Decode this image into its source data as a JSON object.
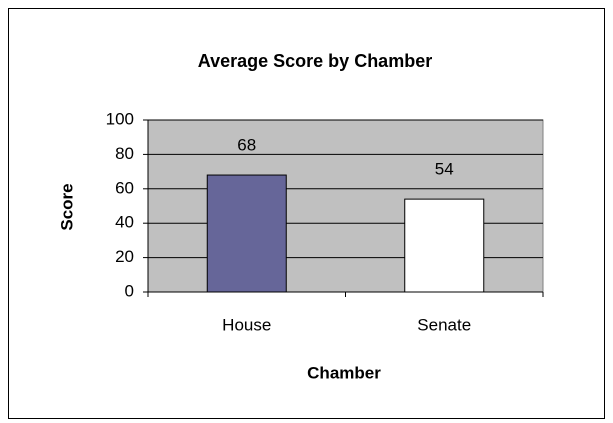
{
  "chart_data": {
    "type": "bar",
    "title": "Average Score by Chamber",
    "x_label": "Chamber",
    "y_label": "Score",
    "categories": [
      "House",
      "Senate"
    ],
    "values": [
      68,
      54
    ],
    "colors": [
      "#666699",
      "#ffffff"
    ],
    "ylim": [
      0,
      100
    ],
    "yticks": [
      0,
      20,
      40,
      60,
      80,
      100
    ],
    "grid": true
  }
}
